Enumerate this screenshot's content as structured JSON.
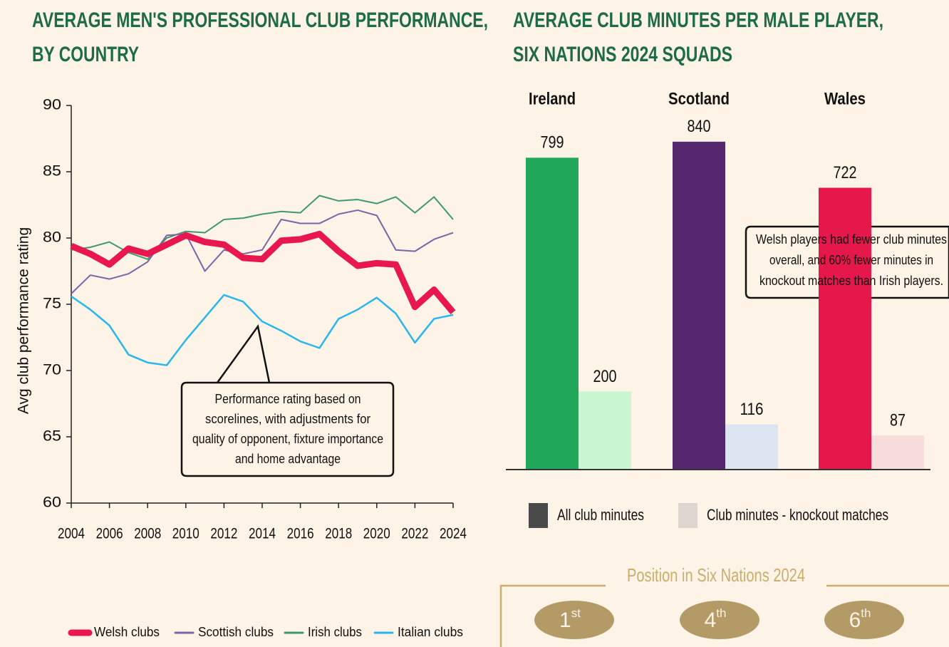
{
  "chart_data": [
    {
      "type": "line",
      "title": [
        "AVERAGE MEN'S PROFESSIONAL CLUB PERFORMANCE,",
        "BY COUNTRY"
      ],
      "y_label": "Avg club performance rating",
      "x": [
        2004,
        2005,
        2006,
        2007,
        2008,
        2009,
        2010,
        2011,
        2012,
        2013,
        2014,
        2015,
        2016,
        2017,
        2018,
        2019,
        2020,
        2021,
        2022,
        2023,
        2024
      ],
      "xlim": [
        2004,
        2024
      ],
      "xticks": [
        2004,
        2006,
        2008,
        2010,
        2012,
        2014,
        2016,
        2018,
        2020,
        2022,
        2024
      ],
      "ylim": [
        60,
        90
      ],
      "yticks": [
        60,
        65,
        70,
        75,
        80,
        85,
        90
      ],
      "series": [
        {
          "name": "Welsh clubs",
          "color": "#e8174f",
          "line_width": 9,
          "values": [
            79.4,
            78.8,
            78.0,
            79.2,
            78.8,
            79.5,
            80.2,
            79.7,
            79.5,
            78.5,
            78.4,
            79.8,
            79.9,
            80.3,
            79.0,
            77.9,
            78.1,
            78.0,
            74.8,
            76.1,
            74.4
          ]
        },
        {
          "name": "Scottish clubs",
          "color": "#7e63a8",
          "line_width": 2,
          "values": [
            75.8,
            77.2,
            76.9,
            77.3,
            78.2,
            80.2,
            80.3,
            77.5,
            79.1,
            78.8,
            79.1,
            81.4,
            81.1,
            81.1,
            81.8,
            82.1,
            81.7,
            79.1,
            79.0,
            79.9,
            80.4
          ]
        },
        {
          "name": "Irish clubs",
          "color": "#3f9a6a",
          "line_width": 2,
          "values": [
            79.1,
            79.3,
            79.7,
            78.9,
            78.4,
            80.0,
            80.5,
            80.4,
            81.4,
            81.5,
            81.8,
            82.0,
            81.9,
            83.2,
            82.8,
            82.9,
            82.6,
            83.1,
            81.9,
            83.1,
            81.4
          ]
        },
        {
          "name": "Italian clubs",
          "color": "#29b6ec",
          "line_width": 2.5,
          "values": [
            75.6,
            74.6,
            73.4,
            71.2,
            70.6,
            70.4,
            72.3,
            74.0,
            75.7,
            75.2,
            73.7,
            73.0,
            72.2,
            71.7,
            73.9,
            74.6,
            75.5,
            74.3,
            72.1,
            73.9,
            74.2
          ]
        }
      ],
      "annotation": [
        "Performance rating based on",
        "scorelines, with adjustments for",
        "quality of opponent, fixture importance",
        "and home advantage"
      ]
    },
    {
      "type": "bar",
      "title": [
        "AVERAGE CLUB MINUTES PER MALE PLAYER,",
        "SIX NATIONS 2024 SQUADS"
      ],
      "categories": [
        "Ireland",
        "Scotland",
        "Wales"
      ],
      "ylim": [
        0,
        900
      ],
      "series": [
        {
          "name": "All club minutes",
          "color": "#4a4a4a",
          "colors": [
            "#22a85a",
            "#55276f",
            "#e6174a"
          ],
          "values": [
            799,
            840,
            722
          ]
        },
        {
          "name": "Club minutes - knockout matches",
          "color": "#ddd6d0",
          "colors": [
            "#c8f7d2",
            "#dde5f3",
            "#f8dcdc"
          ],
          "values": [
            200,
            116,
            87
          ]
        }
      ],
      "annotation": [
        "Welsh players had fewer club minutes",
        "overall, and 60% fewer minutes in",
        "knockout matches than Irish players."
      ]
    }
  ],
  "positions": {
    "title": "Position in Six Nations 2024",
    "items": [
      {
        "rank": "1",
        "suffix": "st"
      },
      {
        "rank": "4",
        "suffix": "th"
      },
      {
        "rank": "6",
        "suffix": "th"
      }
    ]
  }
}
